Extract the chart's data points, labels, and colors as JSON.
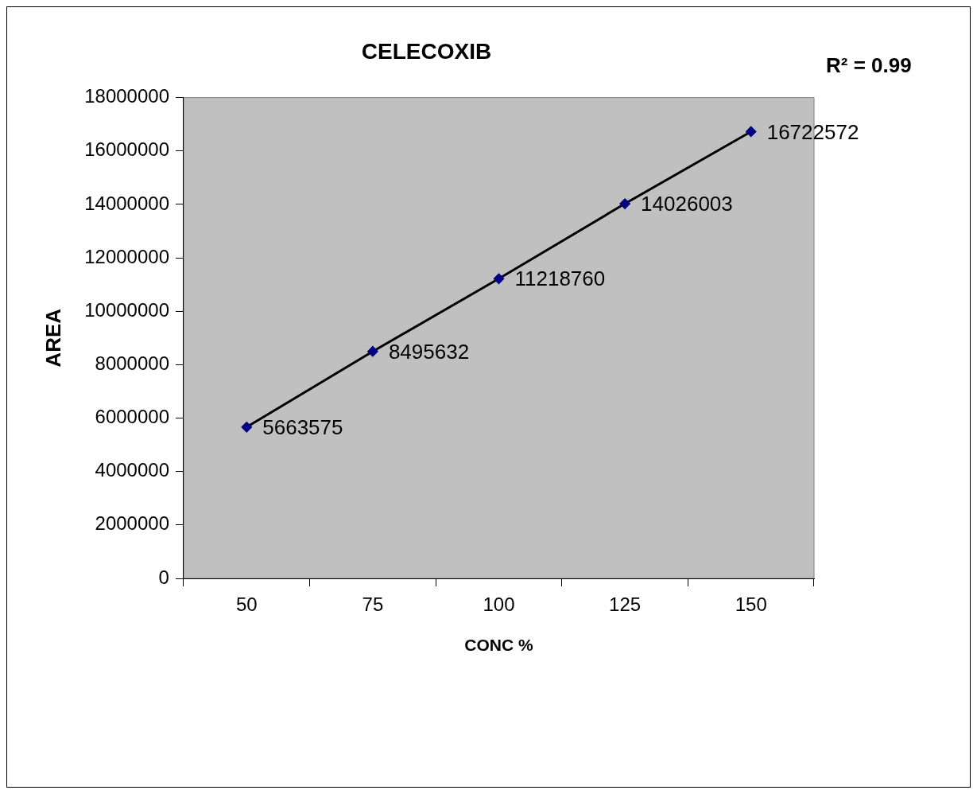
{
  "chart_data": {
    "type": "line",
    "title": "CELECOXIB",
    "xlabel": "CONC %",
    "ylabel": "AREA",
    "categories": [
      "50",
      "75",
      "100",
      "125",
      "150"
    ],
    "series": [
      {
        "color": "#000000",
        "values": [
          5663575,
          8495632,
          11218760,
          14026003,
          16722572
        ]
      }
    ],
    "ylim": [
      0,
      18000000
    ],
    "yticks": [
      0,
      2000000,
      4000000,
      6000000,
      8000000,
      10000000,
      12000000,
      14000000,
      16000000,
      18000000
    ],
    "annotations": [
      "R² = 0.99"
    ],
    "data_labels": true,
    "grid": false,
    "legend": false,
    "marker": "diamond",
    "line_style": "solid"
  }
}
